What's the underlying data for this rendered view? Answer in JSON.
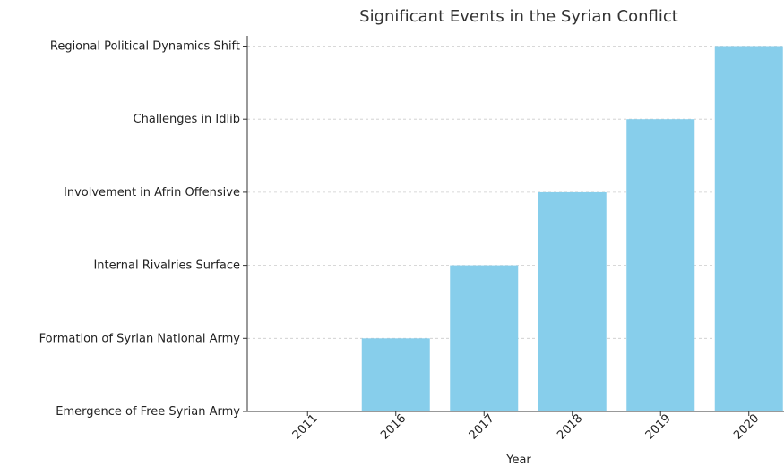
{
  "chart_data": {
    "type": "bar",
    "title": "Significant Events in the Syrian Conflict",
    "xlabel": "Year",
    "ylabel": "",
    "categories": [
      "2011",
      "2016",
      "2017",
      "2018",
      "2019",
      "2020"
    ],
    "y_categories": [
      "Emergence of Free Syrian Army",
      "Formation of Syrian National Army",
      "Internal Rivalries Surface",
      "Involvement in Afrin Offensive",
      "Challenges in Idlib",
      "Regional Political Dynamics Shift"
    ],
    "values": [
      "Emergence of Free Syrian Army",
      "Formation of Syrian National Army",
      "Internal Rivalries Surface",
      "Involvement in Afrin Offensive",
      "Challenges in Idlib",
      "Regional Political Dynamics Shift"
    ],
    "grid": "horizontal dashed",
    "bar_color": "#87CEEB"
  }
}
